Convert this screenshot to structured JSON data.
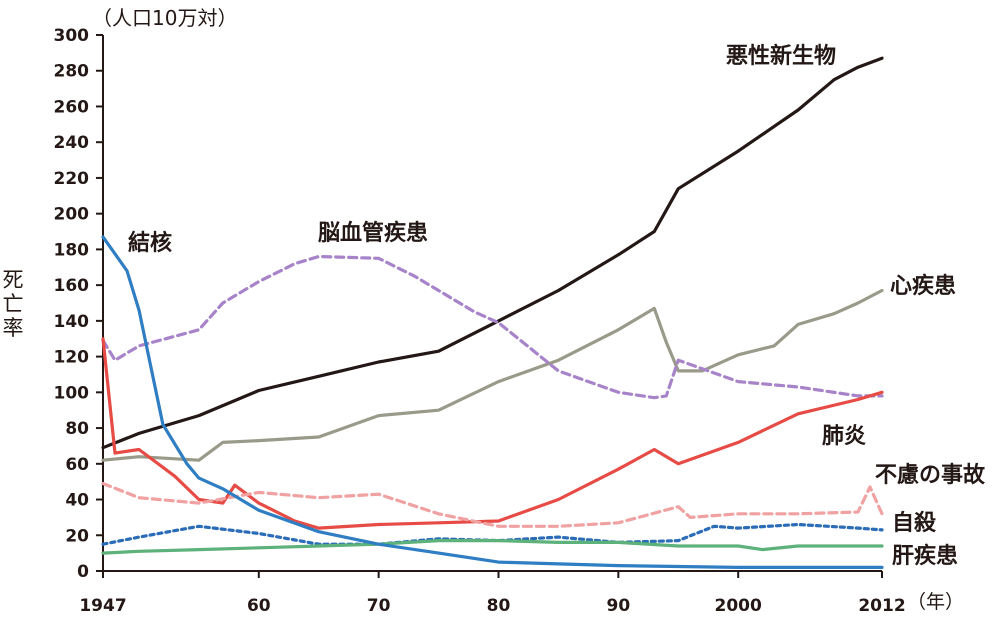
{
  "chart_data": {
    "type": "line",
    "ylabel": "死亡率",
    "y_unit_label": "（人口10万対）",
    "x_unit_label": "（年）",
    "xlim": [
      1947,
      2012
    ],
    "ylim": [
      0,
      300
    ],
    "x_ticks": [
      1947,
      1960,
      1970,
      1980,
      1990,
      2000,
      2012
    ],
    "x_tick_labels": [
      "1947",
      "60",
      "70",
      "80",
      "90",
      "2000",
      "2012"
    ],
    "y_ticks": [
      0,
      20,
      40,
      60,
      80,
      100,
      120,
      140,
      160,
      180,
      200,
      220,
      240,
      260,
      280,
      300
    ],
    "grid": false,
    "series": [
      {
        "name": "悪性新生物",
        "color": "#231815",
        "dash": "solid",
        "x": [
          1947,
          1950,
          1955,
          1960,
          1965,
          1970,
          1975,
          1980,
          1985,
          1990,
          1993,
          1995,
          2000,
          2005,
          2008,
          2010,
          2012
        ],
        "y": [
          69,
          77,
          87,
          101,
          109,
          117,
          123,
          140,
          157,
          177,
          190,
          214,
          235,
          258,
          275,
          282,
          287
        ]
      },
      {
        "name": "心疾患",
        "color": "#9a9a8a",
        "dash": "solid",
        "x": [
          1947,
          1950,
          1955,
          1957,
          1960,
          1965,
          1970,
          1975,
          1980,
          1985,
          1990,
          1993,
          1994,
          1995,
          1997,
          2000,
          2003,
          2005,
          2008,
          2010,
          2012
        ],
        "y": [
          62,
          64,
          62,
          72,
          73,
          75,
          87,
          90,
          106,
          118,
          135,
          147,
          128,
          112,
          112,
          121,
          126,
          138,
          144,
          150,
          157
        ]
      },
      {
        "name": "脳血管疾患",
        "color": "#a783c9",
        "dash": "dashed",
        "x": [
          1947,
          1948,
          1950,
          1955,
          1957,
          1960,
          1963,
          1965,
          1970,
          1973,
          1975,
          1978,
          1980,
          1985,
          1990,
          1993,
          1994,
          1995,
          2000,
          2005,
          2010,
          2012
        ],
        "y": [
          129,
          118,
          126,
          135,
          150,
          162,
          172,
          176,
          175,
          165,
          157,
          145,
          139,
          112,
          100,
          97,
          98,
          118,
          106,
          103,
          98,
          98
        ]
      },
      {
        "name": "肺炎",
        "color": "#e64b45",
        "dash": "solid",
        "x": [
          1947,
          1948,
          1950,
          1953,
          1955,
          1957,
          1958,
          1960,
          1963,
          1965,
          1970,
          1975,
          1980,
          1985,
          1990,
          1993,
          1995,
          2000,
          2005,
          2010,
          2012
        ],
        "y": [
          130,
          66,
          68,
          53,
          40,
          38,
          48,
          38,
          28,
          24,
          26,
          27,
          28,
          40,
          57,
          68,
          60,
          72,
          88,
          96,
          100
        ]
      },
      {
        "name": "不慮の事故",
        "color": "#f0a1a1",
        "dash": "dashed",
        "x": [
          1947,
          1950,
          1955,
          1960,
          1965,
          1970,
          1975,
          1980,
          1985,
          1990,
          1995,
          1996,
          2000,
          2005,
          2010,
          2011,
          2012
        ],
        "y": [
          49,
          41,
          38,
          44,
          41,
          43,
          32,
          25,
          25,
          27,
          36,
          30,
          32,
          32,
          33,
          47,
          32
        ]
      },
      {
        "name": "自殺",
        "color": "#2b6cb8",
        "dash": "dotted",
        "x": [
          1947,
          1950,
          1955,
          1960,
          1965,
          1970,
          1975,
          1980,
          1985,
          1990,
          1995,
          1998,
          2000,
          2005,
          2010,
          2012
        ],
        "y": [
          15,
          19,
          25,
          21,
          15,
          15,
          18,
          17,
          19,
          16,
          17,
          25,
          24,
          26,
          24,
          23
        ]
      },
      {
        "name": "肝疾患",
        "color": "#5cb27a",
        "dash": "solid",
        "x": [
          1947,
          1950,
          1955,
          1960,
          1965,
          1970,
          1975,
          1980,
          1985,
          1990,
          1995,
          2000,
          2002,
          2005,
          2010,
          2012
        ],
        "y": [
          10,
          11,
          12,
          13,
          14,
          15,
          17,
          17,
          16,
          16,
          14,
          14,
          12,
          14,
          14,
          14
        ]
      },
      {
        "name": "結核",
        "color": "#2f7dc3",
        "dash": "solid",
        "x": [
          1947,
          1949,
          1950,
          1952,
          1954,
          1955,
          1957,
          1960,
          1965,
          1970,
          1975,
          1980,
          1985,
          1990,
          2000,
          2012
        ],
        "y": [
          187,
          168,
          146,
          82,
          60,
          52,
          46,
          34,
          22,
          15,
          10,
          5,
          4,
          3,
          2,
          2
        ]
      }
    ]
  }
}
